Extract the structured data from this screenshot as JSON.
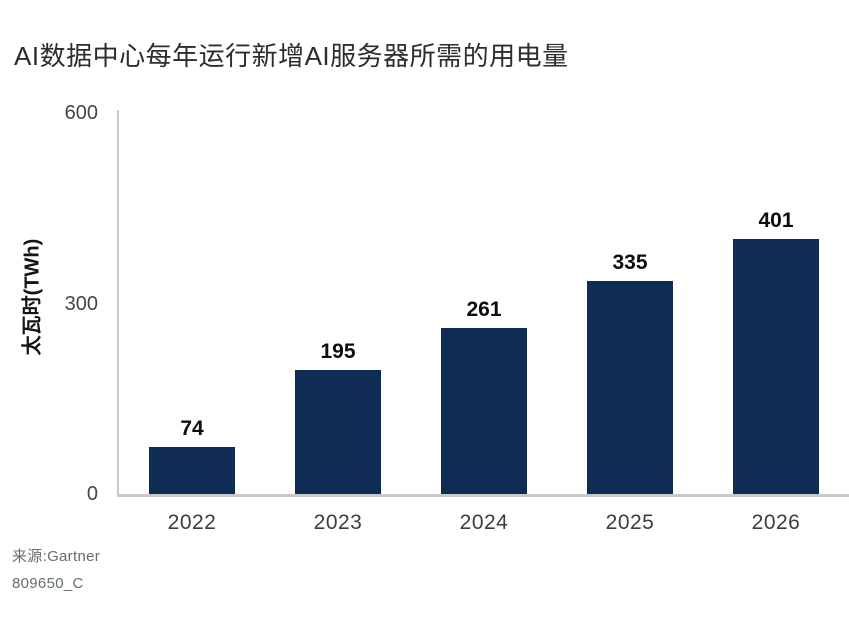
{
  "page": {
    "background_color": "#ffffff"
  },
  "chart_data": {
    "type": "bar",
    "title": "AI数据中心每年运行新增AI服务器所需的用电量",
    "categories": [
      "2022",
      "2023",
      "2024",
      "2025",
      "2026"
    ],
    "values": [
      74,
      195,
      261,
      335,
      401
    ],
    "value_labels": [
      "74",
      "195",
      "261",
      "335",
      "401"
    ],
    "xlabel": "",
    "ylabel": "太瓦时(TWh)",
    "ylim": [
      0,
      600
    ],
    "yticks": [
      0,
      300,
      600
    ],
    "ytick_labels": [
      "0",
      "300",
      "600"
    ],
    "grid": false,
    "legend": null,
    "bar_color": "#0f2c55",
    "axis_color": "#c9c9c9",
    "value_label_color": "#0c0c0c",
    "tick_label_color": "#454545"
  },
  "footer": {
    "source": "来源:Gartner",
    "doc_id": "809650_C"
  }
}
